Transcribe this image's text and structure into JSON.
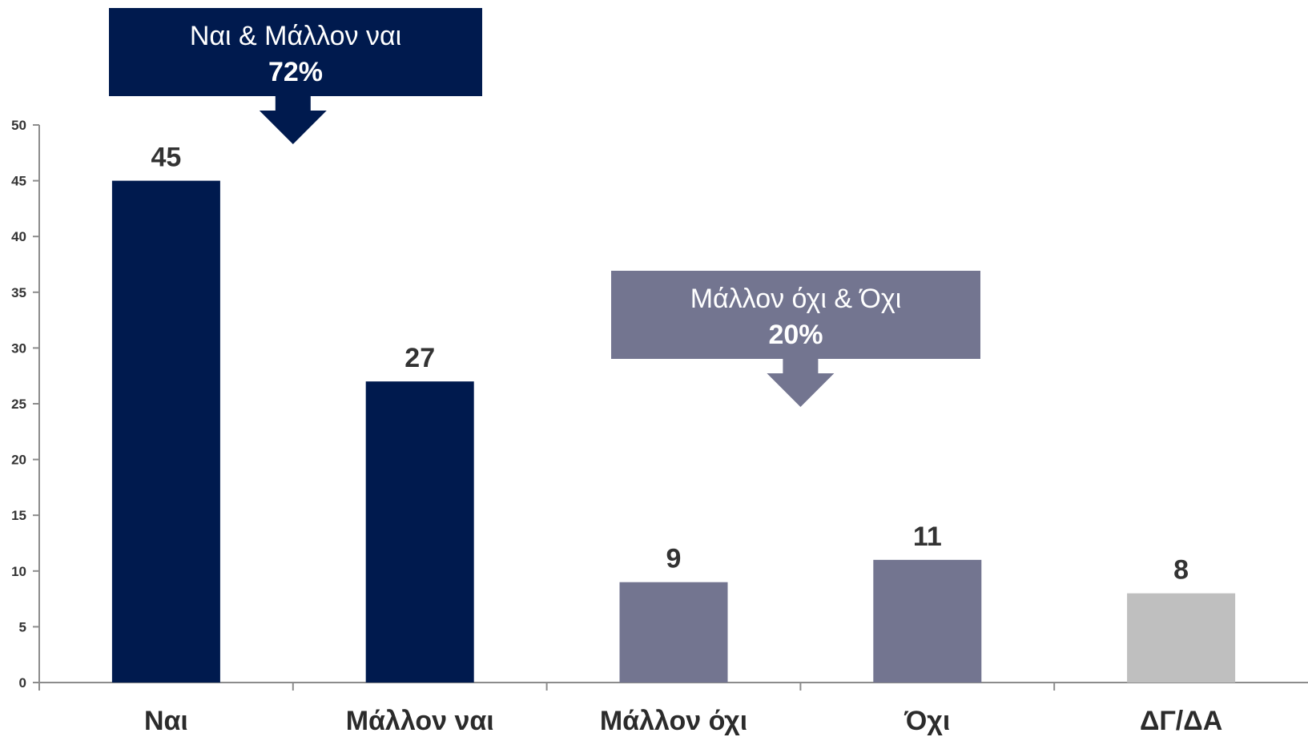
{
  "chart_data": {
    "type": "bar",
    "categories": [
      "Ναι",
      "Μάλλον ναι",
      "Μάλλον όχι",
      "Όχι",
      "ΔΓ/ΔΑ"
    ],
    "values": [
      45,
      27,
      9,
      11,
      8
    ],
    "bar_colors": [
      "#001a4e",
      "#001a4e",
      "#737590",
      "#737590",
      "#bfbfbf"
    ],
    "ylim": [
      0,
      50
    ],
    "yticks": [
      0,
      5,
      10,
      15,
      20,
      25,
      30,
      35,
      40,
      45,
      50
    ],
    "grid": false,
    "value_labels": [
      "45",
      "27",
      "9",
      "11",
      "8"
    ],
    "annotations": [
      {
        "line1": "Ναι & Μάλλον ναι",
        "line2": "72%",
        "color": "#001a4e",
        "spans": [
          0,
          1
        ]
      },
      {
        "line1": "Μάλλον όχι & Όχι",
        "line2": "20%",
        "color": "#737590",
        "spans": [
          2,
          3
        ]
      }
    ]
  }
}
